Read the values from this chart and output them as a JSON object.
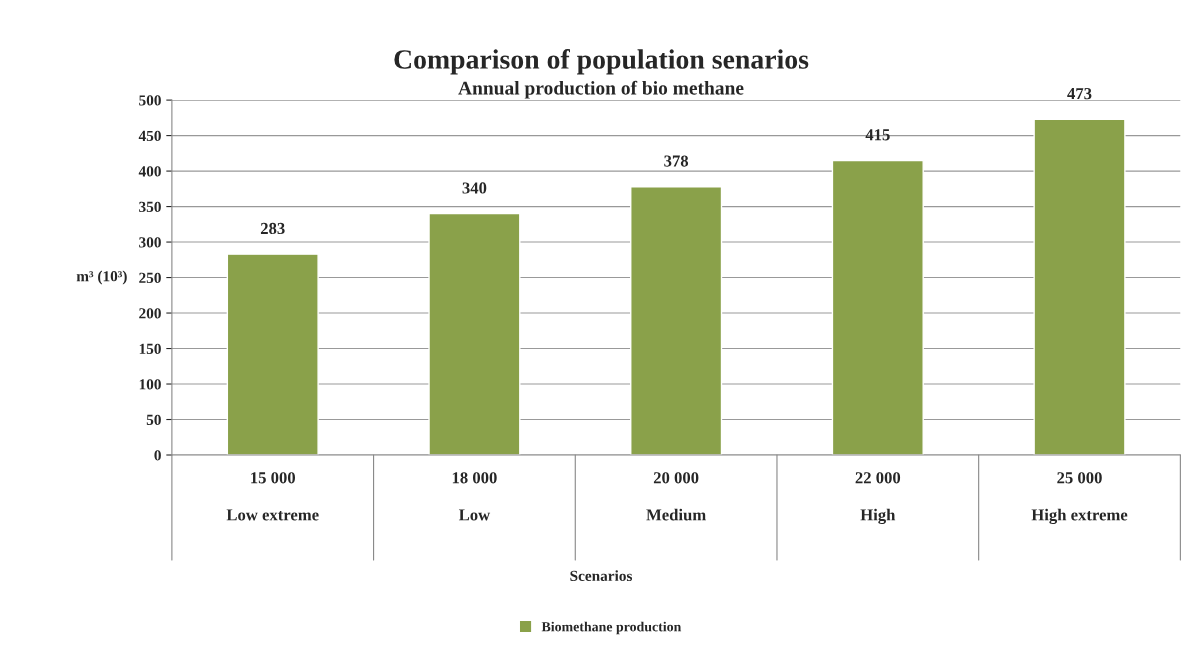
{
  "chart_data": {
    "type": "bar",
    "title": "Comparison of population senarios",
    "subtitle": "Annual production of bio methane",
    "ylabel": "m³ (10³)",
    "annotations": [
      "Scenarios"
    ],
    "categories": [
      "15 000\nLow extreme",
      "18 000\nLow",
      "20 000\nMedium",
      "22 000\nHigh",
      "25 000\nHigh extreme"
    ],
    "series": [
      {
        "name": "Biomethane production",
        "color": "#8aa14a",
        "values": [
          283,
          340,
          378,
          415,
          473
        ]
      }
    ],
    "ylim": [
      0,
      500
    ],
    "yticks": [
      0,
      50,
      100,
      150,
      200,
      250,
      300,
      350,
      400,
      450,
      500
    ],
    "grid": "y",
    "legend": "bottom",
    "data_labels": true
  }
}
